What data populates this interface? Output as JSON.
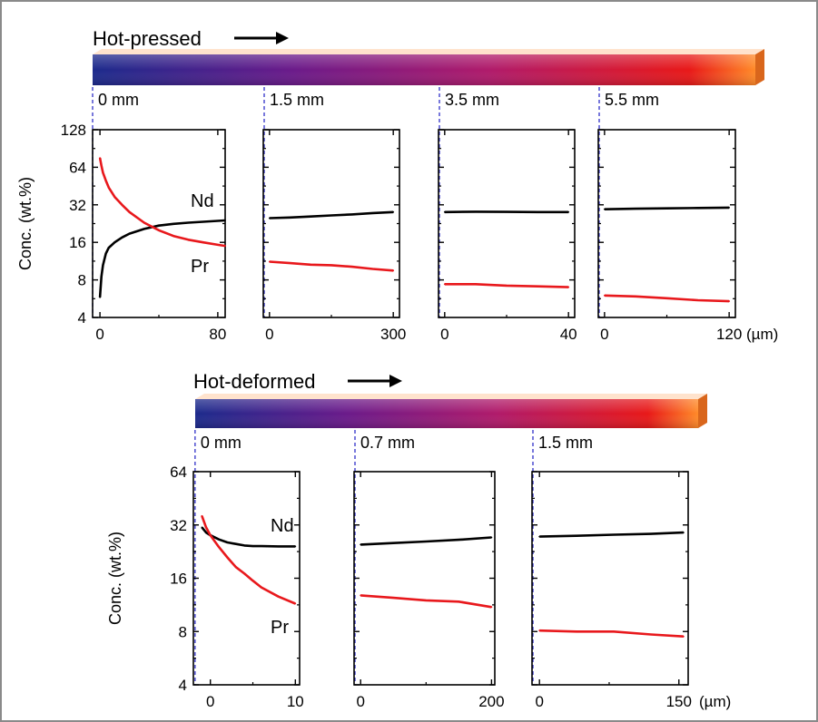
{
  "panels": {
    "top": {
      "section_title": "Hot-pressed",
      "unit_label": "(µm)",
      "ylabel": "Conc. (wt.%)"
    },
    "bottom": {
      "section_title": "Hot-deformed",
      "unit_label": "(µm)",
      "ylabel": "Conc. (wt.%)"
    }
  },
  "colors": {
    "nd": "#000000",
    "pr": "#e8181c",
    "marker": "#3030c8",
    "gradient": [
      "#1c2a8c",
      "#6a1a8a",
      "#b01a6a",
      "#e81818",
      "#ff8a28"
    ]
  },
  "chart_data": [
    {
      "type": "line",
      "group": "Hot-pressed",
      "position_label": "0 mm",
      "ylabel": "Conc. (wt.%)",
      "yscale": "log2",
      "ylim": [
        4,
        128
      ],
      "yticks": [
        4,
        8,
        16,
        32,
        64,
        128
      ],
      "xlim": [
        -5,
        85
      ],
      "xticks": [
        0,
        80
      ],
      "annotations": [
        {
          "text": "Nd",
          "series": "Nd"
        },
        {
          "text": "Pr",
          "series": "Pr"
        }
      ],
      "series": [
        {
          "name": "Nd",
          "x": [
            0,
            1,
            2,
            4,
            6,
            10,
            15,
            20,
            30,
            40,
            50,
            60,
            70,
            80,
            85
          ],
          "y": [
            5.8,
            8.5,
            10.5,
            13,
            14.5,
            16,
            17.5,
            18.8,
            20.5,
            21.8,
            22.5,
            23,
            23.4,
            23.8,
            24
          ]
        },
        {
          "name": "Pr",
          "x": [
            0,
            1,
            2,
            4,
            6,
            10,
            15,
            20,
            30,
            40,
            50,
            60,
            70,
            80,
            85
          ],
          "y": [
            76,
            66,
            58,
            50,
            44,
            37,
            32,
            28,
            23,
            20,
            18,
            16.8,
            16,
            15.3,
            15
          ]
        }
      ]
    },
    {
      "type": "line",
      "group": "Hot-pressed",
      "position_label": "1.5 mm",
      "yscale": "log2",
      "ylim": [
        4,
        128
      ],
      "xlim": [
        -15,
        315
      ],
      "xticks": [
        0,
        300
      ],
      "series": [
        {
          "name": "Nd",
          "x": [
            0,
            50,
            100,
            150,
            200,
            250,
            300
          ],
          "y": [
            25,
            25.3,
            25.8,
            26.3,
            26.8,
            27.5,
            28
          ]
        },
        {
          "name": "Pr",
          "x": [
            0,
            50,
            100,
            150,
            200,
            250,
            300
          ],
          "y": [
            11.2,
            10.9,
            10.6,
            10.5,
            10.2,
            9.8,
            9.5
          ]
        }
      ]
    },
    {
      "type": "line",
      "group": "Hot-pressed",
      "position_label": "3.5 mm",
      "yscale": "log2",
      "ylim": [
        4,
        128
      ],
      "xlim": [
        -2,
        42
      ],
      "xticks": [
        0,
        40
      ],
      "series": [
        {
          "name": "Nd",
          "x": [
            0,
            10,
            20,
            30,
            40
          ],
          "y": [
            28,
            28.2,
            28.1,
            28,
            28
          ]
        },
        {
          "name": "Pr",
          "x": [
            0,
            10,
            20,
            30,
            40
          ],
          "y": [
            7.4,
            7.4,
            7.2,
            7.1,
            7.0
          ]
        }
      ]
    },
    {
      "type": "line",
      "group": "Hot-pressed",
      "position_label": "5.5 mm",
      "yscale": "log2",
      "ylim": [
        4,
        128
      ],
      "xlim": [
        -6,
        126
      ],
      "xticks": [
        0,
        120
      ],
      "series": [
        {
          "name": "Nd",
          "x": [
            0,
            30,
            60,
            90,
            120
          ],
          "y": [
            29.5,
            29.8,
            30,
            30.2,
            30.4
          ]
        },
        {
          "name": "Pr",
          "x": [
            0,
            30,
            60,
            90,
            120
          ],
          "y": [
            6.0,
            5.9,
            5.7,
            5.5,
            5.4
          ]
        }
      ]
    },
    {
      "type": "line",
      "group": "Hot-deformed",
      "position_label": "0 mm",
      "ylabel": "Conc. (wt.%)",
      "yscale": "log2",
      "ylim": [
        4,
        64
      ],
      "yticks": [
        4,
        8,
        16,
        32,
        64
      ],
      "xlim": [
        -2,
        10.5
      ],
      "xticks": [
        0,
        10
      ],
      "annotations": [
        {
          "text": "Nd",
          "series": "Nd"
        },
        {
          "text": "Pr",
          "series": "Pr"
        }
      ],
      "series": [
        {
          "name": "Nd",
          "x": [
            -1,
            -0.5,
            0,
            1,
            2,
            3,
            4,
            5,
            6,
            8,
            10
          ],
          "y": [
            31,
            29,
            28,
            26.5,
            25.5,
            25,
            24.5,
            24.3,
            24.3,
            24.2,
            24.2
          ]
        },
        {
          "name": "Pr",
          "x": [
            -1,
            -0.5,
            0,
            1,
            2,
            3,
            4,
            5,
            6,
            8,
            10
          ],
          "y": [
            36,
            31,
            28,
            24,
            21,
            18.5,
            17,
            15.5,
            14.2,
            12.6,
            11.5
          ]
        }
      ]
    },
    {
      "type": "line",
      "group": "Hot-deformed",
      "position_label": "0.7 mm",
      "yscale": "log2",
      "ylim": [
        4,
        64
      ],
      "xlim": [
        -10,
        205
      ],
      "xticks": [
        0,
        200
      ],
      "series": [
        {
          "name": "Nd",
          "x": [
            0,
            50,
            100,
            150,
            200
          ],
          "y": [
            24.8,
            25.3,
            25.8,
            26.4,
            27.2
          ]
        },
        {
          "name": "Pr",
          "x": [
            0,
            50,
            100,
            150,
            200
          ],
          "y": [
            12.8,
            12.4,
            12.0,
            11.8,
            11.0
          ]
        }
      ]
    },
    {
      "type": "line",
      "group": "Hot-deformed",
      "position_label": "1.5 mm",
      "yscale": "log2",
      "ylim": [
        4,
        64
      ],
      "xlim": [
        -8,
        160
      ],
      "xticks": [
        0,
        150
      ],
      "series": [
        {
          "name": "Nd",
          "x": [
            0,
            40,
            80,
            120,
            155
          ],
          "y": [
            27.5,
            27.8,
            28.2,
            28.5,
            29
          ]
        },
        {
          "name": "Pr",
          "x": [
            0,
            40,
            80,
            120,
            155
          ],
          "y": [
            8.1,
            8.0,
            8.0,
            7.7,
            7.5
          ]
        }
      ]
    }
  ]
}
